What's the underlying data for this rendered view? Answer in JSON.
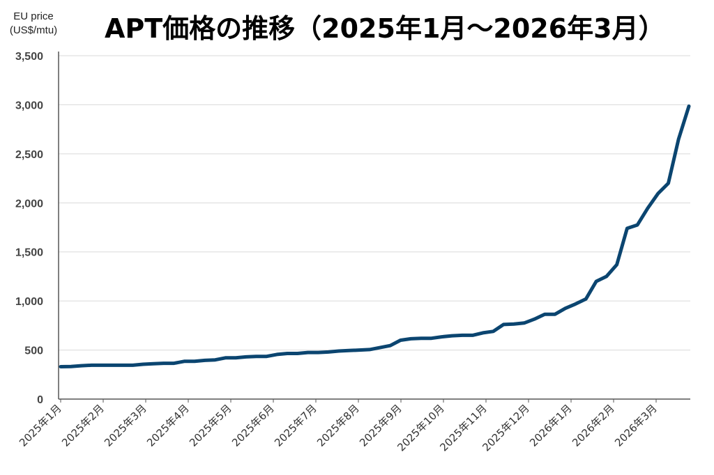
{
  "chart_data": {
    "type": "line",
    "title": "APT価格の推移（2025年1月～2026年3月）",
    "ylabel_line1": "EU price",
    "ylabel_line2": "(US$/mtu)",
    "ylim": [
      0,
      3500
    ],
    "yticks": [
      "0",
      "500",
      "1,000",
      "1,500",
      "2,000",
      "2,500",
      "3,000",
      "3,500"
    ],
    "ytick_values": [
      0,
      500,
      1000,
      1500,
      2000,
      2500,
      3000,
      3500
    ],
    "xtick_labels": [
      "2025年1月",
      "2025年2月",
      "2025年3月",
      "2025年4月",
      "2025年5月",
      "2025年6月",
      "2025年7月",
      "2025年8月",
      "2025年9月",
      "2025年10月",
      "2025年11月",
      "2025年12月",
      "2026年1月",
      "2026年2月",
      "2026年3月"
    ],
    "grid": true,
    "color": "#0b4570",
    "series": [
      {
        "values": [
          330,
          332,
          340,
          345,
          345,
          345,
          345,
          345,
          355,
          360,
          365,
          365,
          385,
          385,
          395,
          400,
          420,
          420,
          430,
          435,
          435,
          455,
          465,
          465,
          475,
          475,
          480,
          490,
          495,
          500,
          505,
          525,
          545,
          600,
          615,
          620,
          620,
          635,
          645,
          650,
          650,
          675,
          690,
          760,
          765,
          775,
          815,
          865,
          865,
          925,
          970,
          1020,
          1200,
          1250,
          1370,
          1740,
          1775,
          1945,
          2095,
          2200,
          2650,
          2985
        ]
      }
    ]
  }
}
